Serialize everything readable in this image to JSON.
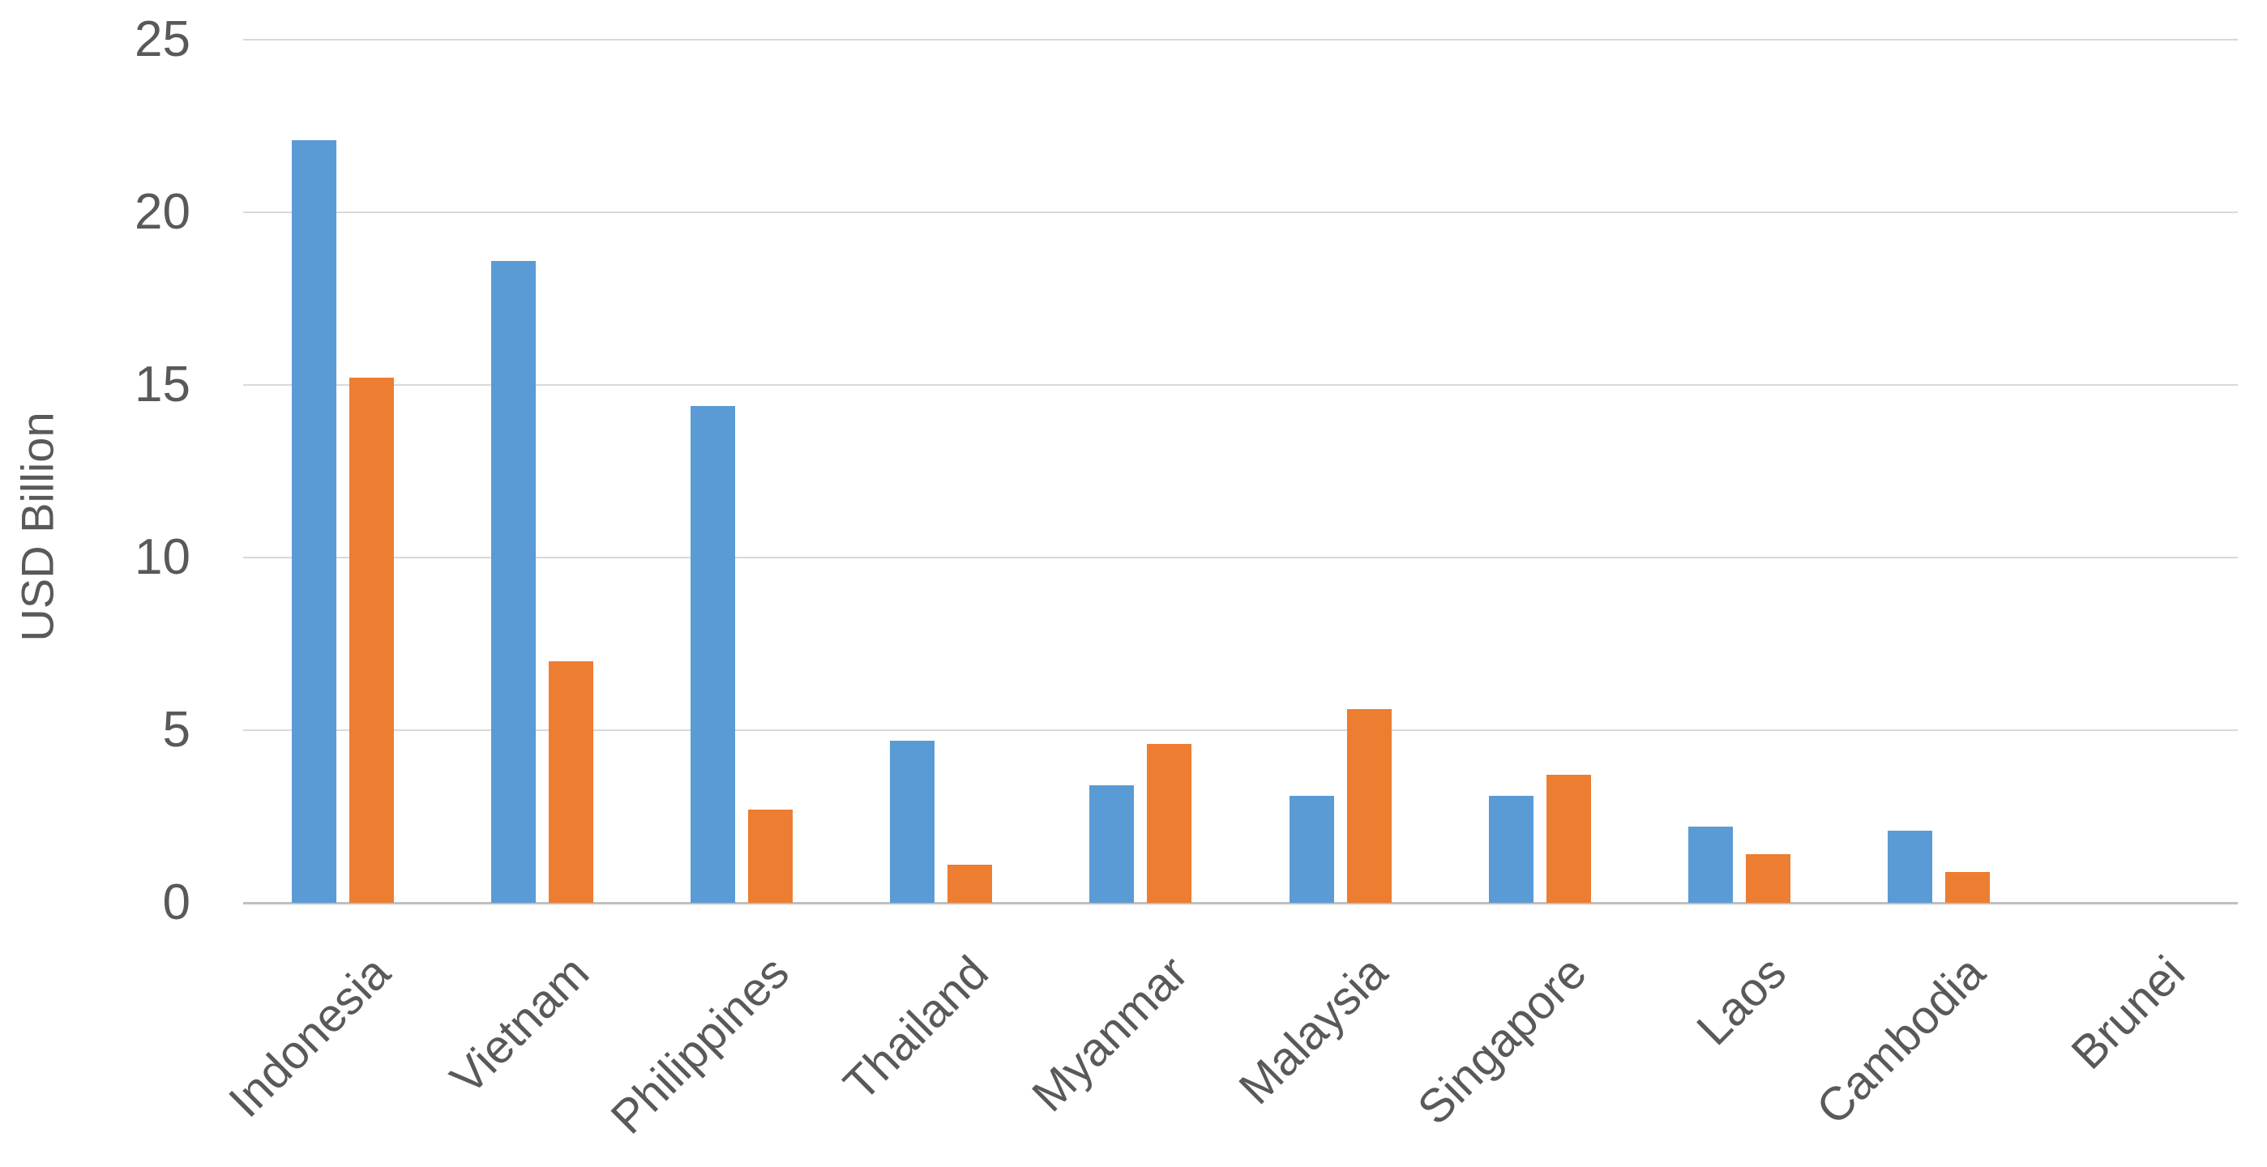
{
  "chart_data": {
    "type": "bar",
    "title": "",
    "xlabel": "",
    "ylabel": "USD Billion",
    "categories": [
      "Indonesia",
      "Vietnam",
      "Philippines",
      "Thailand",
      "Myanmar",
      "Malaysia",
      "Singapore",
      "Laos",
      "Cambodia",
      "Brunei"
    ],
    "series": [
      {
        "name": "blue",
        "color": "#5B9BD5",
        "values": [
          22.1,
          18.6,
          14.4,
          4.7,
          3.4,
          3.1,
          3.1,
          2.2,
          2.1,
          0
        ]
      },
      {
        "name": "orange",
        "color": "#ED7D31",
        "values": [
          15.2,
          7.0,
          2.7,
          1.1,
          4.6,
          5.6,
          3.7,
          1.4,
          0.9,
          0
        ]
      }
    ],
    "ylim": [
      0,
      25
    ],
    "yticks": [
      0,
      5,
      10,
      15,
      20,
      25
    ],
    "grid": "horizontal",
    "legend": "none",
    "styles": {
      "grid_color": "#D9D9D9",
      "axis_color": "#BFBFBF",
      "text_color": "#595959",
      "background": "#FFFFFF"
    }
  }
}
